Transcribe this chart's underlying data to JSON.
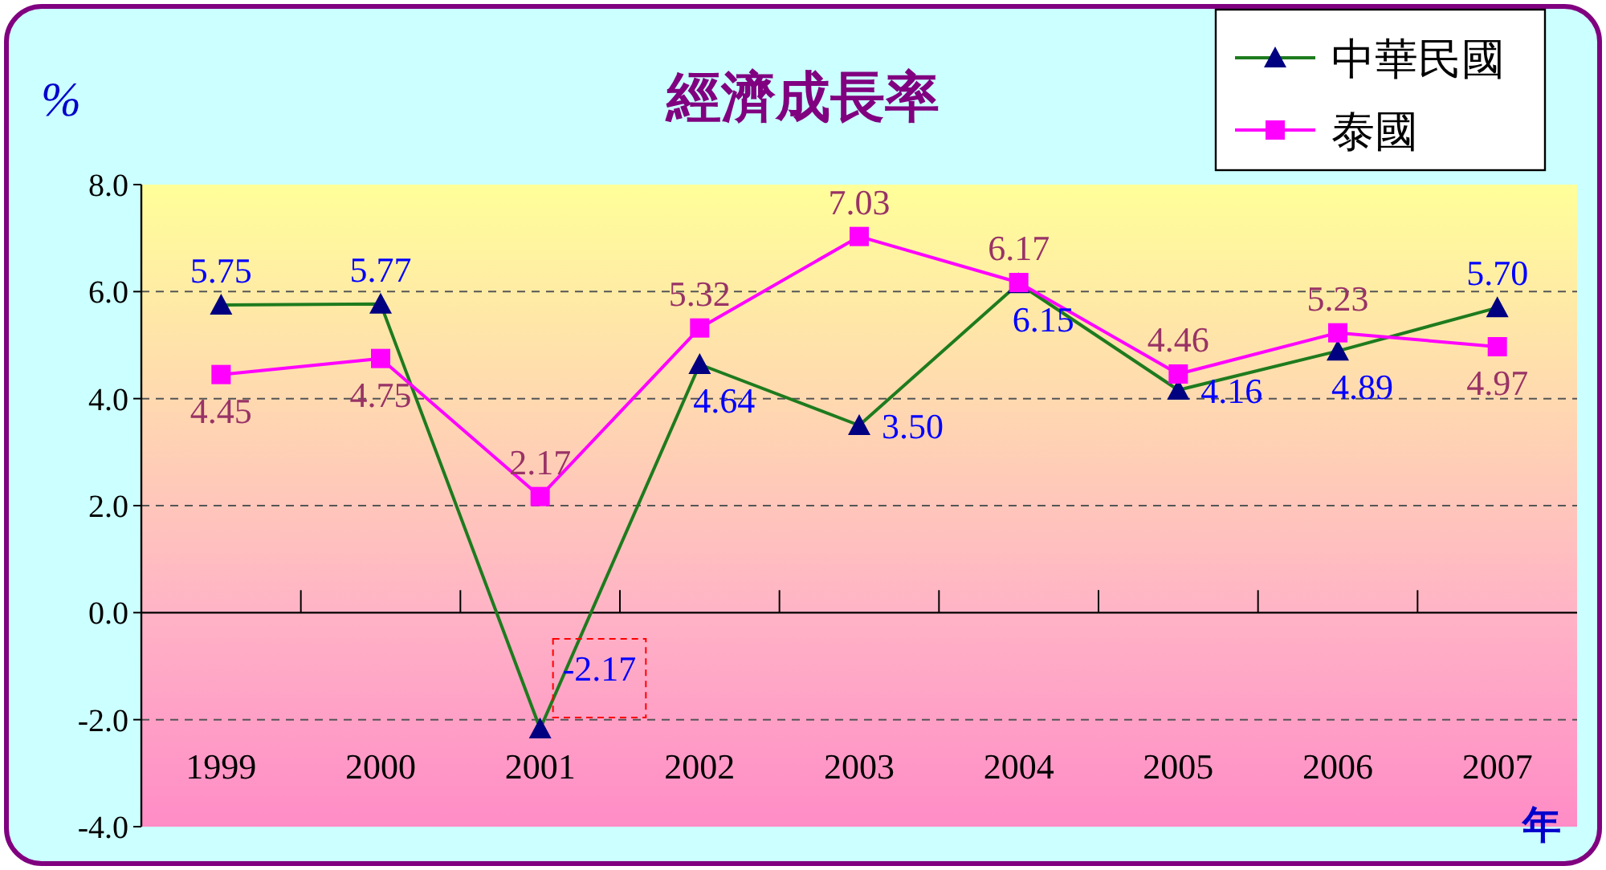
{
  "chart_data": {
    "type": "line",
    "title": "經濟成長率",
    "ylabel": "%",
    "xlabel": "年",
    "categories": [
      "1999",
      "2000",
      "2001",
      "2002",
      "2003",
      "2004",
      "2005",
      "2006",
      "2007"
    ],
    "series": [
      {
        "name": "中華民國",
        "color": "#1e7b1e",
        "values": [
          5.75,
          5.77,
          -2.17,
          4.64,
          3.5,
          6.15,
          4.16,
          4.89,
          5.7
        ],
        "value_labels": [
          "5.75",
          "5.77",
          "-2.17",
          "4.64",
          "3.50",
          "6.15",
          "4.16",
          "4.89",
          "5.70"
        ],
        "marker": "triangle"
      },
      {
        "name": "泰國",
        "color": "#ff00ff",
        "values": [
          4.45,
          4.75,
          2.17,
          5.32,
          7.03,
          6.17,
          4.46,
          5.23,
          4.97
        ],
        "value_labels": [
          "4.45",
          "4.75",
          "2.17",
          "5.32",
          "7.03",
          "6.17",
          "4.46",
          "5.23",
          "4.97"
        ],
        "marker": "square"
      }
    ],
    "ylim": [
      -4,
      8
    ],
    "yticks": [
      {
        "value": -4,
        "label": "-4.0"
      },
      {
        "value": -2,
        "label": "-2.0"
      },
      {
        "value": 0,
        "label": "0.0"
      },
      {
        "value": 2,
        "label": "2.0"
      },
      {
        "value": 4,
        "label": "4.0"
      },
      {
        "value": 6,
        "label": "6.0"
      },
      {
        "value": 8,
        "label": "8.0"
      }
    ],
    "grid": "y",
    "legend": "top right",
    "line_style": "solid"
  }
}
